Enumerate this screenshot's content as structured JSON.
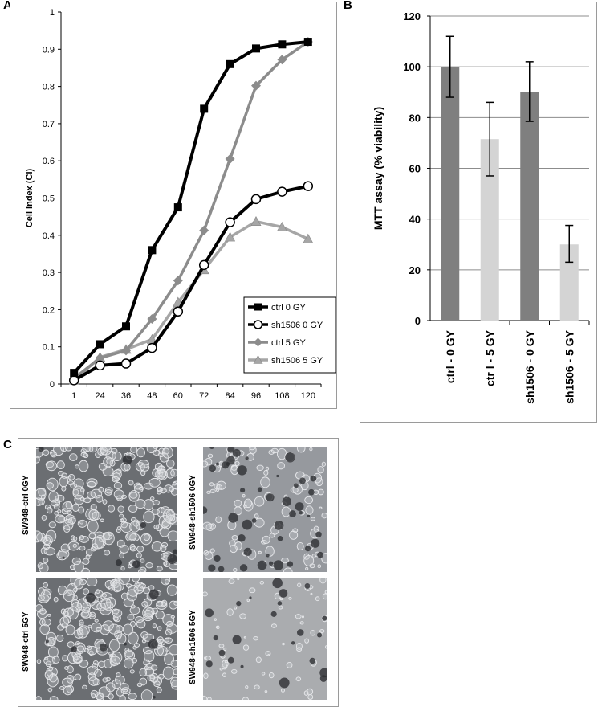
{
  "panels": {
    "a": "A",
    "b": "B",
    "c": "C"
  },
  "chart_data": [
    {
      "type": "line",
      "title": "",
      "xlabel": "time (h)",
      "ylabel": "Cell Index (CI)",
      "x": [
        1,
        24,
        36,
        48,
        60,
        72,
        84,
        96,
        108,
        120
      ],
      "x_tick_labels": [
        "1",
        "24",
        "36",
        "48",
        "60",
        "72",
        "84",
        "96",
        "108",
        "120"
      ],
      "ylim": [
        0,
        1
      ],
      "y_ticks": [
        0,
        0.1,
        0.2,
        0.3,
        0.4,
        0.5,
        0.6,
        0.7,
        0.8,
        0.9,
        1
      ],
      "y_tick_labels": [
        "0",
        "0.1",
        "0.2",
        "0.3",
        "0.4",
        "0.5",
        "0.6",
        "0.7",
        "0.8",
        "0.9",
        "1"
      ],
      "grid": false,
      "legend_position": "bottom-right",
      "series": [
        {
          "name": "ctrl 0 GY",
          "color": "#000000",
          "marker": "square",
          "values": [
            0.03,
            0.107,
            0.155,
            0.36,
            0.475,
            0.74,
            0.86,
            0.902,
            0.913,
            0.92
          ]
        },
        {
          "name": "sh1506 0 GY",
          "color": "#000000",
          "marker": "circle",
          "values": [
            0.01,
            0.05,
            0.055,
            0.097,
            0.195,
            0.32,
            0.435,
            0.497,
            0.517,
            0.532
          ]
        },
        {
          "name": "ctrl 5 GY",
          "color": "#8c8c8c",
          "marker": "diamond",
          "values": [
            0.015,
            0.07,
            0.09,
            0.175,
            0.278,
            0.413,
            0.605,
            0.802,
            0.872,
            0.92
          ]
        },
        {
          "name": "sh1506 5 GY",
          "color": "#a6a6a6",
          "marker": "triangle",
          "values": [
            0.01,
            0.072,
            0.093,
            0.12,
            0.22,
            0.307,
            0.395,
            0.437,
            0.422,
            0.39
          ]
        }
      ]
    },
    {
      "type": "bar",
      "title": "",
      "xlabel": "",
      "ylabel": "MTT assay (% viability)",
      "categories": [
        "ctrl - 0 GY",
        "ctr l - 5 GY",
        "sh1506 - 0 GY",
        "sh1506 - 5 GY"
      ],
      "values": [
        100,
        71.5,
        90,
        30
      ],
      "error_low": [
        88,
        57,
        78.5,
        23
      ],
      "error_high": [
        112,
        86,
        102,
        37.5
      ],
      "colors": [
        "#7f7f7f",
        "#d4d4d4",
        "#7f7f7f",
        "#d4d4d4"
      ],
      "ylim": [
        0,
        120
      ],
      "y_ticks": [
        0,
        20,
        40,
        60,
        80,
        100,
        120
      ],
      "y_tick_labels": [
        "0",
        "20",
        "40",
        "60",
        "80",
        "100",
        "120"
      ],
      "grid": true
    }
  ],
  "images": [
    {
      "label": "SW948-ctrl 0GY",
      "density": "high",
      "dark": "few"
    },
    {
      "label": "SW948-sh1506 0GY",
      "density": "medium",
      "dark": "many"
    },
    {
      "label": "SW948-ctrl 5GY",
      "density": "high",
      "dark": "few"
    },
    {
      "label": "SW948-sh1506 5GY",
      "density": "low",
      "dark": "some"
    }
  ]
}
